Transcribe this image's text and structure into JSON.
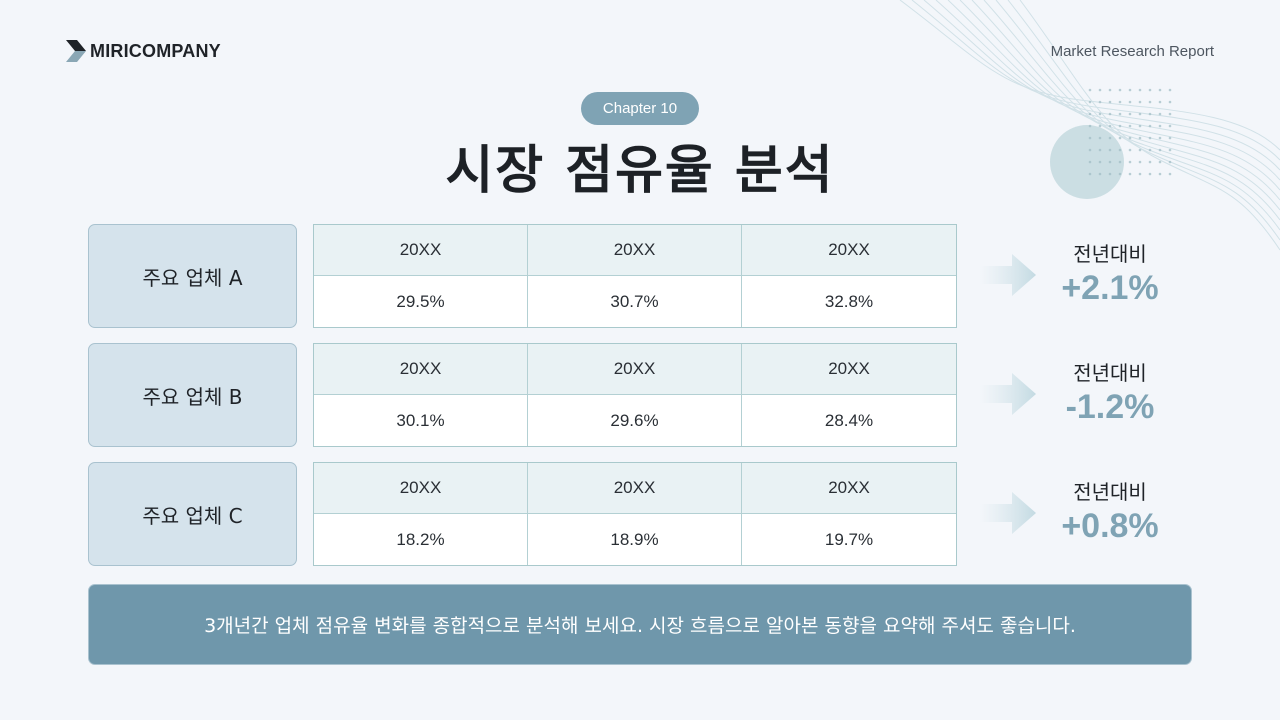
{
  "header": {
    "brand": "MIRICOMPANY",
    "report_label": "Market Research Report"
  },
  "chapter": "Chapter 10",
  "title": "시장 점유율 분석",
  "rows": [
    {
      "company": "주요 업체 A",
      "years": [
        "20XX",
        "20XX",
        "20XX"
      ],
      "values": [
        "29.5%",
        "30.7%",
        "32.8%"
      ],
      "yoy_label": "전년대비",
      "yoy_value": "+2.1%"
    },
    {
      "company": "주요 업체 B",
      "years": [
        "20XX",
        "20XX",
        "20XX"
      ],
      "values": [
        "30.1%",
        "29.6%",
        "28.4%"
      ],
      "yoy_label": "전년대비",
      "yoy_value": "-1.2%"
    },
    {
      "company": "주요 업체 C",
      "years": [
        "20XX",
        "20XX",
        "20XX"
      ],
      "values": [
        "18.2%",
        "18.9%",
        "19.7%"
      ],
      "yoy_label": "전년대비",
      "yoy_value": "+0.8%"
    }
  ],
  "summary": "3개년간 업체 점유율 변화를 종합적으로 분석해 보세요. 시장 흐름으로 알아본 동향을 요약해 주셔도 좋습니다.",
  "colors": {
    "accent": "#7fa3b4",
    "summary_bg": "#6f97ab",
    "company_bg": "#d5e3ec",
    "table_head_bg": "#e9f2f4",
    "background": "#f3f6fa"
  },
  "icons": {
    "logo": "miricompany-logo-icon",
    "row_arrow": "arrow-right-icon"
  }
}
